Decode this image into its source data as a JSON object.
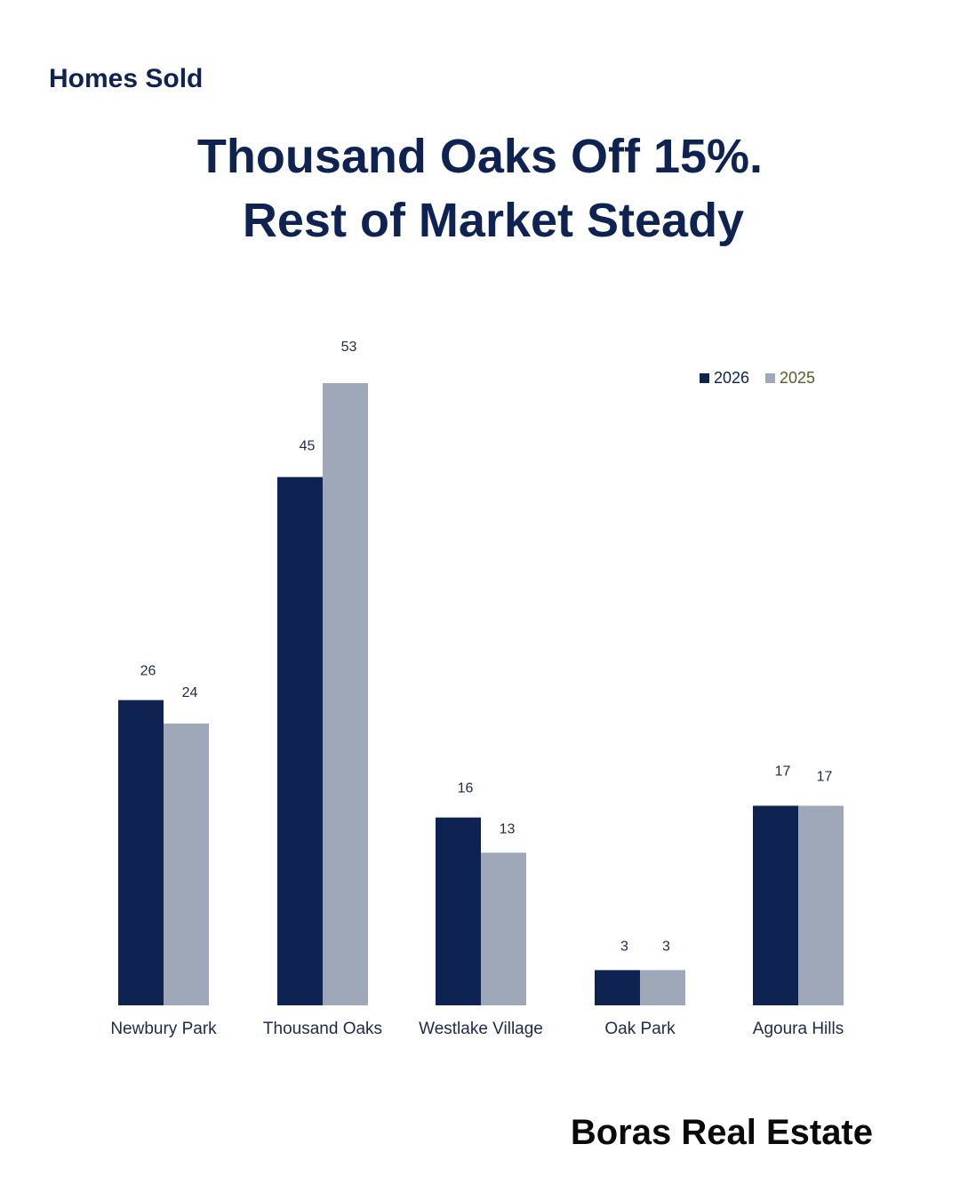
{
  "header": {
    "section_label": "Homes Sold",
    "title_line1": "Thousand Oaks Off 15%.",
    "title_line2": "Rest of Market Steady"
  },
  "footer": {
    "brand": "Boras Real Estate"
  },
  "colors": {
    "series_2026": "#0e2351",
    "series_2025": "#9ea8b9",
    "legend_2025_text": "#5a5a2a",
    "text_dark": "#0f2352"
  },
  "chart_data": {
    "type": "bar",
    "title": "Thousand Oaks Off 15%. Rest of Market Steady",
    "categories": [
      "Newbury Park",
      "Thousand Oaks",
      "Westlake Village",
      "Oak Park",
      "Agoura Hills"
    ],
    "series": [
      {
        "name": "2026",
        "values": [
          26,
          45,
          16,
          3,
          17
        ]
      },
      {
        "name": "2025",
        "values": [
          24,
          53,
          13,
          3,
          17
        ]
      }
    ],
    "xlabel": "",
    "ylabel": "",
    "ylim": [
      0,
      53
    ],
    "grid": false,
    "legend_position": "top-right",
    "data_labels": true
  }
}
